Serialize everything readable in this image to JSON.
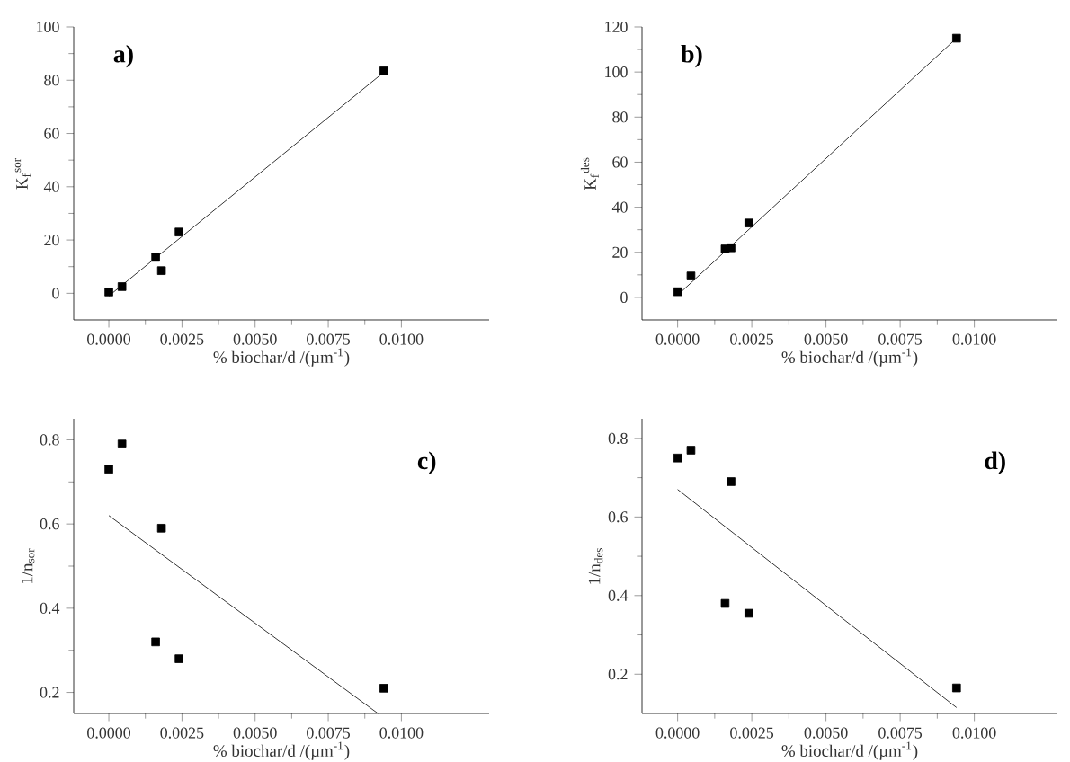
{
  "chart_data": [
    {
      "type": "scatter",
      "xlabel": "% biochar/d /(µm$^{-1}$)",
      "ylabel": "K$_{f}$$^{sor}$",
      "annotations": [
        "**a)**"
      ],
      "xlim": [
        -0.0012,
        0.013
      ],
      "ylim": [
        -10,
        100
      ],
      "xticks": [
        {
          "value": 0,
          "label": "0.0000"
        },
        {
          "value": 0.0025,
          "label": "0.0025"
        },
        {
          "value": 0.005,
          "label": "0.0050"
        },
        {
          "value": 0.0075,
          "label": "0.0075"
        },
        {
          "value": 0.01,
          "label": "0.0100"
        }
      ],
      "yticks": [
        0,
        20,
        40,
        60,
        80,
        100
      ],
      "series": [
        {
          "marker": "square",
          "color": "#000000",
          "x": [
            0,
            0.00045,
            0.0016,
            0.0018,
            0.0024,
            0.0094
          ],
          "values": [
            0.5,
            2.5,
            13.5,
            8.5,
            23,
            83.5
          ]
        },
        {
          "type": "line",
          "color": "#000000",
          "x": [
            0,
            0.0094
          ],
          "values": [
            -1,
            83
          ]
        }
      ]
    },
    {
      "type": "scatter",
      "xlabel": "% biochar/d /(µm$^{-1}$)",
      "ylabel": "K$_{f}$$^{des}$",
      "annotations": [
        "**b)**"
      ],
      "xlim": [
        -0.0012,
        0.0128
      ],
      "ylim": [
        -10,
        120
      ],
      "xticks": [
        {
          "value": 0,
          "label": "0.0000"
        },
        {
          "value": 0.0025,
          "label": "0.0025"
        },
        {
          "value": 0.005,
          "label": "0.0050"
        },
        {
          "value": 0.0075,
          "label": "0.0075"
        },
        {
          "value": 0.01,
          "label": "0.0100"
        }
      ],
      "yticks": [
        0,
        20,
        40,
        60,
        80,
        100,
        120
      ],
      "series": [
        {
          "marker": "square",
          "color": "#000000",
          "x": [
            0,
            0.00045,
            0.0016,
            0.0018,
            0.0024,
            0.0094
          ],
          "values": [
            2.5,
            9.5,
            21.5,
            22,
            33,
            115
          ]
        },
        {
          "type": "line",
          "color": "#000000",
          "x": [
            0,
            0.0094
          ],
          "values": [
            1,
            115
          ]
        }
      ]
    },
    {
      "type": "scatter",
      "xlabel": "% biochar/d /(µm$^{-1}$)",
      "ylabel": "1/n$_{sor}$",
      "annotations": [
        "**c)**"
      ],
      "xlim": [
        -0.0012,
        0.013
      ],
      "ylim": [
        0.15,
        0.85
      ],
      "xticks": [
        {
          "value": 0,
          "label": "0.0000"
        },
        {
          "value": 0.0025,
          "label": "0.0025"
        },
        {
          "value": 0.005,
          "label": "0.0050"
        },
        {
          "value": 0.0075,
          "label": "0.0075"
        },
        {
          "value": 0.01,
          "label": "0.0100"
        }
      ],
      "yticks": [
        0.2,
        0.4,
        0.6,
        0.8
      ],
      "series": [
        {
          "marker": "square",
          "color": "#000000",
          "x": [
            0,
            0.00045,
            0.0016,
            0.0018,
            0.0024,
            0.0094
          ],
          "values": [
            0.73,
            0.79,
            0.32,
            0.59,
            0.28,
            0.21
          ]
        },
        {
          "type": "line",
          "color": "#000000",
          "x": [
            0,
            0.0092
          ],
          "values": [
            0.62,
            0.15
          ]
        }
      ]
    },
    {
      "type": "scatter",
      "xlabel": "% biochar/d /(µm$^{-1}$)",
      "ylabel": "1/n$_{des}$",
      "annotations": [
        "**d)**"
      ],
      "xlim": [
        -0.0012,
        0.0128
      ],
      "ylim": [
        0.1,
        0.85
      ],
      "xticks": [
        {
          "value": 0,
          "label": "0.0000"
        },
        {
          "value": 0.0025,
          "label": "0.0025"
        },
        {
          "value": 0.005,
          "label": "0.0050"
        },
        {
          "value": 0.0075,
          "label": "0.0075"
        },
        {
          "value": 0.01,
          "label": "0.0100"
        }
      ],
      "yticks": [
        0.2,
        0.4,
        0.6,
        0.8
      ],
      "series": [
        {
          "marker": "square",
          "color": "#000000",
          "x": [
            0,
            0.00045,
            0.0016,
            0.0018,
            0.0024,
            0.0094
          ],
          "values": [
            0.75,
            0.77,
            0.38,
            0.69,
            0.355,
            0.165
          ]
        },
        {
          "type": "line",
          "color": "#000000",
          "x": [
            0,
            0.0094
          ],
          "values": [
            0.67,
            0.115
          ]
        }
      ]
    }
  ]
}
